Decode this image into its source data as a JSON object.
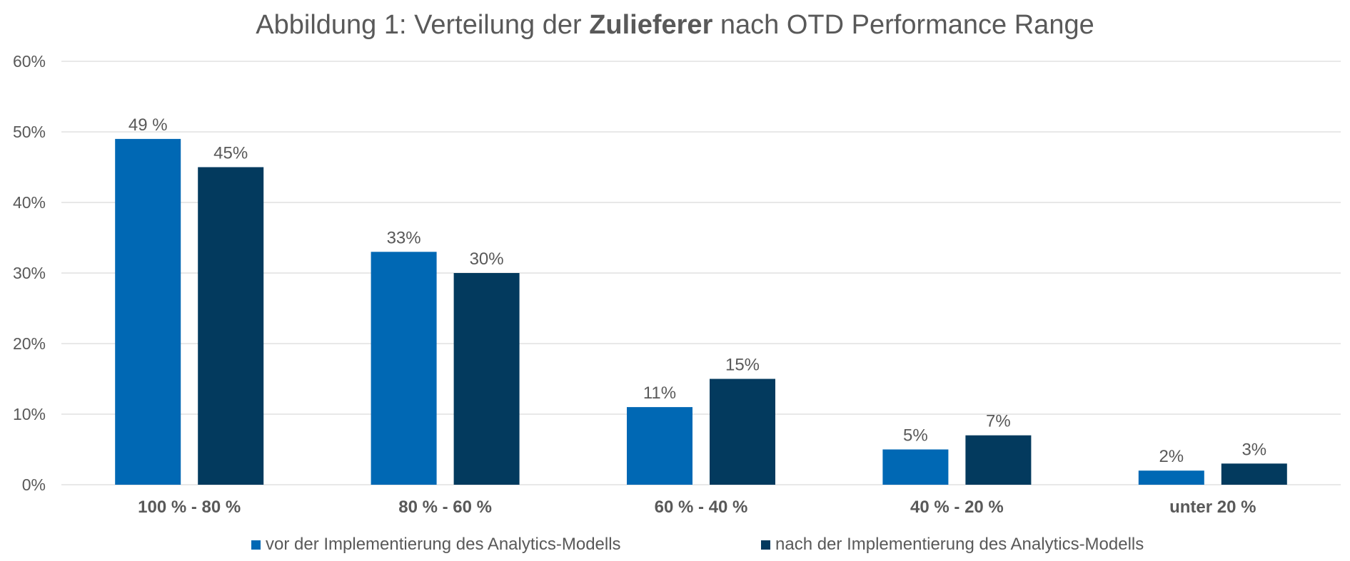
{
  "colors": {
    "series1": "#0068b4",
    "series2": "#033a5e",
    "grid": "#d9d9d9",
    "text": "#595959"
  },
  "chart_data": {
    "type": "bar",
    "title": {
      "part1": "Abbildung 1: Verteilung der ",
      "bold": "Zulieferer",
      "part2": " nach OTD Performance Range"
    },
    "categories": [
      "100 % - 80 %",
      "80 % - 60 %",
      "60 % - 40 %",
      "40 % - 20 %",
      "unter 20 %"
    ],
    "series": [
      {
        "name": "vor der Implementierung des Analytics-Modells",
        "values": [
          49,
          33,
          11,
          5,
          2
        ],
        "labels": [
          "49 %",
          "33%",
          "11%",
          "5%",
          "2%"
        ]
      },
      {
        "name": "nach der Implementierung des Analytics-Modells",
        "values": [
          45,
          30,
          15,
          7,
          3
        ],
        "labels": [
          "45%",
          "30%",
          "15%",
          "7%",
          "3%"
        ]
      }
    ],
    "ylim": [
      0,
      60
    ],
    "yticks": [
      "0%",
      "10%",
      "20%",
      "30%",
      "40%",
      "50%",
      "60%"
    ],
    "grid": true,
    "legend_position": "bottom"
  }
}
